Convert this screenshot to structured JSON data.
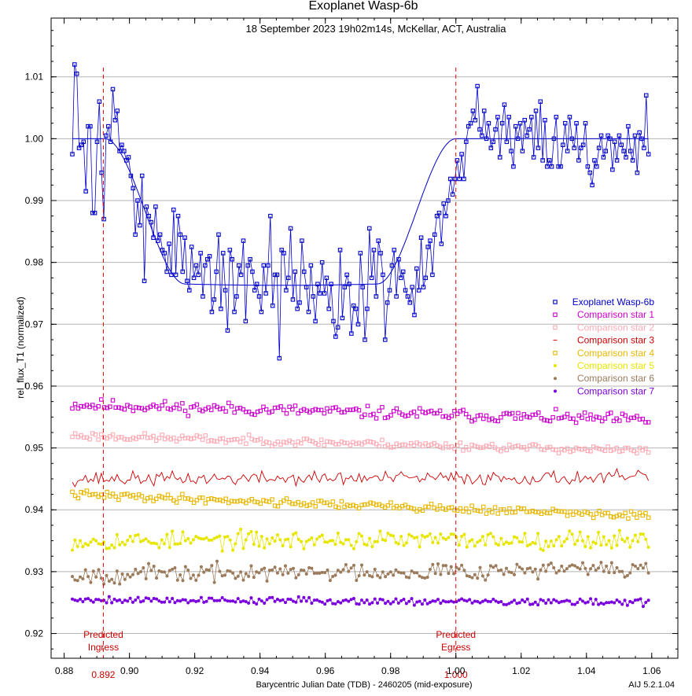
{
  "chart_data": {
    "type": "scatter",
    "title": "Exoplanet Wasp-6b",
    "subtitle": "18 September 2023 19h02m14s,  McKellar, ACT, Australia",
    "xlabel": "Barycentric Julian Date (TDB) - 2460205 (mid-exposure)",
    "ylabel": "rel_flux_T1 (normalized)",
    "version": "AIJ 5.2.1.04",
    "xlim": [
      0.876,
      1.068
    ],
    "ylim": [
      0.916,
      1.0195
    ],
    "xticks": [
      0.88,
      0.9,
      0.92,
      0.94,
      0.96,
      0.98,
      1.0,
      1.02,
      1.04,
      1.06
    ],
    "xtick_labels": [
      "0.88",
      "0.90",
      "0.92",
      "0.94",
      "0.96",
      "0.98",
      "1.00",
      "1.02",
      "1.04",
      "1.06"
    ],
    "yticks": [
      0.92,
      0.93,
      0.94,
      0.95,
      0.96,
      0.97,
      0.98,
      0.99,
      1.0,
      1.01
    ],
    "ytick_labels": [
      "0.92",
      "0.93",
      "0.94",
      "0.95",
      "0.96",
      "0.97",
      "0.98",
      "0.99",
      "1.00",
      "1.01"
    ],
    "grid": "horizontal",
    "legend_position": "right",
    "markers": [
      {
        "x": 0.892,
        "label_top": "Predicted",
        "label_bottom": "Ingress",
        "value_label": "0.892"
      },
      {
        "x": 1.0,
        "label_top": "Predicted",
        "label_bottom": "Egress",
        "value_label": "1.000"
      }
    ],
    "model": {
      "name": "Exoplanet Wasp-6b model",
      "depth": 0.0237,
      "baseline": 1.0,
      "ingress_start": 0.8925,
      "ingress_end": 0.917,
      "egress_start": 0.976,
      "egress_end": 1.0
    },
    "series": [
      {
        "name": "Exoplanet Wasp-6b",
        "color": "#0000cc",
        "marker": "square",
        "line": true,
        "x_start": 0.8825,
        "x_end": 1.059,
        "y": [
          0.9975,
          1.012,
          1.0105,
          0.9985,
          0.999,
          0.9995,
          0.9915,
          1.002,
          1.002,
          0.988,
          0.988,
          0.9995,
          1.006,
          0.9945,
          0.987,
          1.0005,
          1.002,
          0.9995,
          1.008,
          1.003,
          1.0045,
          0.998,
          0.999,
          0.998,
          0.9965,
          0.997,
          0.994,
          0.992,
          0.9845,
          0.99,
          0.986,
          0.994,
          0.977,
          0.989,
          0.9875,
          0.9865,
          0.984,
          0.989,
          0.9835,
          0.9845,
          0.982,
          0.9815,
          0.9785,
          0.983,
          0.978,
          0.9885,
          0.978,
          0.9875,
          0.9845,
          0.9785,
          0.984,
          0.977,
          0.9755,
          0.9825,
          0.9775,
          0.9795,
          0.978,
          0.9815,
          0.9745,
          0.9795,
          0.9805,
          0.981,
          0.972,
          0.974,
          0.9785,
          0.9845,
          0.9725,
          0.9815,
          0.9755,
          0.969,
          0.982,
          0.9805,
          0.972,
          0.9745,
          0.9795,
          0.978,
          0.9835,
          0.9705,
          0.9795,
          0.9805,
          0.9785,
          0.9755,
          0.9765,
          0.9745,
          0.972,
          0.9795,
          0.975,
          0.9795,
          0.9875,
          0.973,
          0.978,
          0.978,
          0.9645,
          0.982,
          0.9815,
          0.9755,
          0.9775,
          0.9855,
          0.974,
          0.9785,
          0.9725,
          0.9735,
          0.9835,
          0.9785,
          0.976,
          0.972,
          0.9795,
          0.9745,
          0.9705,
          0.9765,
          0.975,
          0.98,
          0.975,
          0.9775,
          0.9725,
          0.9765,
          0.9705,
          0.968,
          0.9695,
          0.982,
          0.971,
          0.976,
          0.978,
          0.9765,
          0.9685,
          0.973,
          0.9725,
          0.97,
          0.9815,
          0.976,
          0.9675,
          0.9725,
          0.9855,
          0.9775,
          0.982,
          0.9745,
          0.9835,
          0.9815,
          0.978,
          0.9675,
          0.9735,
          0.9755,
          0.9795,
          0.982,
          0.9745,
          0.9805,
          0.9775,
          0.9785,
          0.9755,
          0.9745,
          0.9735,
          0.976,
          0.9715,
          0.979,
          0.9755,
          0.984,
          0.976,
          0.9775,
          0.9825,
          0.9835,
          0.978,
          0.9845,
          0.9875,
          0.988,
          0.983,
          0.9895,
          0.9875,
          0.99,
          0.9935,
          0.991,
          0.9935,
          0.9965,
          0.9935,
          0.9975,
          0.9935,
          0.9995,
          1.002,
          1.0025,
          1.0045,
          1.003,
          1.0085,
          1.0015,
          1.0005,
          1.0045,
          1.0,
          1.0025,
          0.9985,
          0.9995,
          1.0015,
          1.0035,
          0.997,
          1.0025,
          1.0055,
          0.9995,
          1.0035,
          0.998,
          0.9955,
          1.002,
          1.0,
          1.0025,
          0.998,
          1.003,
          1.0005,
          1.0015,
          1.0035,
          0.997,
          1.0045,
          0.9985,
          1.006,
          0.9965,
          1.003,
          0.9955,
          0.9965,
          0.9955,
          1.0,
          1.0035,
          0.9955,
          0.9955,
          0.999,
          1.0025,
          0.998,
          1.0035,
          1.0,
          0.9985,
          1.0025,
          0.9965,
          0.9985,
          0.999,
          1.0025,
          0.9955,
          0.9945,
          0.9925,
          0.9965,
          0.9955,
          0.9985,
          1.0005,
          0.997,
          0.998,
          1.0005,
          1.0,
          0.995,
          0.9995,
          0.9965,
          1.0005,
          0.999,
          0.998,
          0.997,
          1.002,
          0.998,
          0.9965,
          1.0005,
          0.9945,
          1.001,
          1.0,
          0.9985,
          1.007,
          0.9975
        ]
      },
      {
        "name": "Comparison star 1",
        "color": "#cc00cc",
        "marker": "square",
        "line": false,
        "x_start": 0.8825,
        "x_end": 1.059,
        "n": 200,
        "start": 0.957,
        "end": 0.9545,
        "noise": 0.0006,
        "seed": 11
      },
      {
        "name": "Comparison star 2",
        "color": "#ffaab4",
        "marker": "square",
        "line": false,
        "x_start": 0.8825,
        "x_end": 1.059,
        "n": 200,
        "start": 0.952,
        "end": 0.9495,
        "noise": 0.0004,
        "seed": 23
      },
      {
        "name": "Comparison star 3",
        "color": "#cc0000",
        "marker": "dash",
        "line": true,
        "x_start": 0.8825,
        "x_end": 1.059,
        "n": 220,
        "start": 0.945,
        "end": 0.9452,
        "noise": 0.0007,
        "seed": 37
      },
      {
        "name": "Comparison star 4",
        "color": "#e8b800",
        "marker": "square",
        "line": false,
        "x_start": 0.8825,
        "x_end": 1.059,
        "n": 200,
        "start": 0.9425,
        "end": 0.939,
        "noise": 0.0004,
        "seed": 41
      },
      {
        "name": "Comparison star 5",
        "color": "#e6e600",
        "marker": "dot",
        "line": true,
        "x_start": 0.8825,
        "x_end": 1.059,
        "n": 220,
        "start": 0.935,
        "end": 0.9352,
        "noise": 0.0009,
        "seed": 53
      },
      {
        "name": "Comparison star 6",
        "color": "#9b7b5b",
        "marker": "dot",
        "line": true,
        "x_start": 0.8825,
        "x_end": 1.059,
        "n": 220,
        "start": 0.9295,
        "end": 0.9305,
        "noise": 0.0009,
        "seed": 67
      },
      {
        "name": "Comparison star 7",
        "color": "#7a00dd",
        "marker": "dot",
        "line": true,
        "x_start": 0.8825,
        "x_end": 1.059,
        "n": 220,
        "start": 0.9255,
        "end": 0.925,
        "noise": 0.00035,
        "seed": 79
      }
    ]
  }
}
